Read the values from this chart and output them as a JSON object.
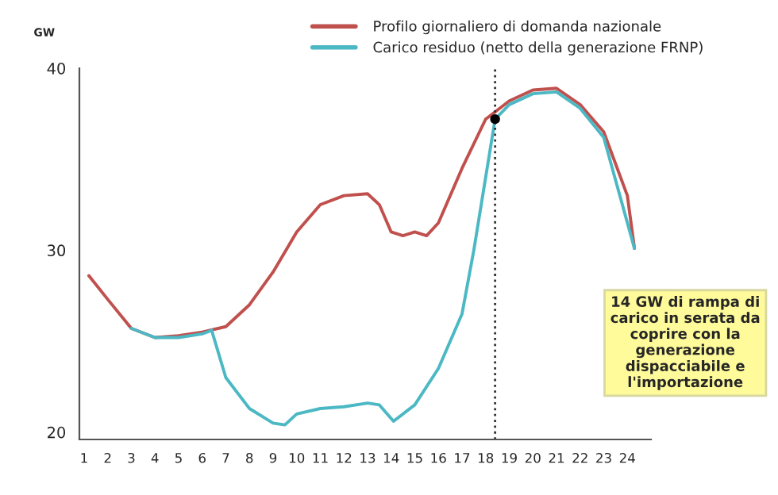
{
  "chart_data": {
    "type": "line",
    "ylabel": "GW",
    "xlim": [
      0.8,
      25
    ],
    "xticks": [
      1,
      2,
      3,
      4,
      5,
      6,
      7,
      8,
      9,
      10,
      11,
      12,
      13,
      14,
      15,
      16,
      17,
      18,
      19,
      20,
      21,
      22,
      23,
      24
    ],
    "ylim": [
      19.6,
      40
    ],
    "yticks": [
      20,
      30,
      40
    ],
    "grid": false,
    "legend": "top",
    "marker": "none",
    "line_style": "solid",
    "series": [
      {
        "name": "Profilo giornaliero di domanda nazionale",
        "color": "#c0504d",
        "x": [
          1.2,
          2,
          3,
          4,
          5,
          6,
          7,
          8,
          9,
          10,
          11,
          12,
          13,
          13.5,
          14,
          14.5,
          15,
          15.5,
          16,
          17,
          18,
          19,
          20,
          21,
          22,
          23,
          24,
          24.3
        ],
        "values": [
          28.6,
          27.3,
          25.7,
          25.2,
          25.3,
          25.5,
          25.8,
          27,
          28.8,
          31,
          32.5,
          33,
          33.1,
          32.5,
          31,
          30.8,
          31,
          30.8,
          31.5,
          34.5,
          37.2,
          38.2,
          38.8,
          38.9,
          38,
          36.5,
          33,
          30.1
        ]
      },
      {
        "name": "Carico residuo (netto della generazione FRNP)",
        "color": "#4bb8c4",
        "x": [
          3,
          4,
          5,
          6,
          6.4,
          7,
          8,
          9,
          9.5,
          10,
          11,
          12,
          13,
          13.5,
          14.1,
          15,
          16,
          17,
          17.5,
          18,
          18.4,
          19,
          20,
          21,
          22,
          23,
          24.3
        ],
        "values": [
          25.7,
          25.2,
          25.2,
          25.4,
          25.6,
          23,
          21.3,
          20.5,
          20.4,
          21,
          21.3,
          21.4,
          21.6,
          21.5,
          20.6,
          21.5,
          23.5,
          26.5,
          30,
          34,
          37.2,
          38,
          38.6,
          38.7,
          37.8,
          36.2,
          30.1
        ]
      },
      {
        "type": "scatter",
        "marker": "circle",
        "color": "#000000",
        "x": [
          18.4
        ],
        "values": [
          37.2
        ]
      }
    ],
    "ref_lines": [
      {
        "axis": "x",
        "value": 18.4,
        "color": "#333333",
        "line_style": "dotted"
      }
    ],
    "annotations": [
      "14 GW di rampa di\ncarico in serata da\ncoprire con la\ngenerazione\ndispacciabile e\nl'importazione"
    ]
  }
}
